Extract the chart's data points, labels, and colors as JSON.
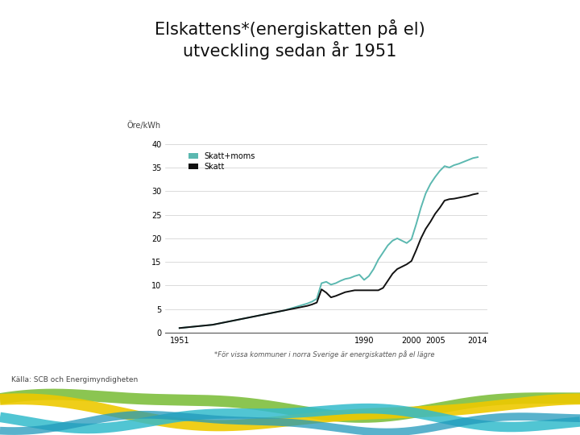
{
  "title_line1": "Elskattens*(energiskatten på el)",
  "title_line2": "utveckling sedan år 1951",
  "ylabel": "Öre/kWh",
  "footnote": "*För vissa kommuner i norra Sverige är energiskatten på el lägre",
  "source": "Källa: SCB och Energimyndigheten",
  "legend_skatt_moms": "Skatt+moms",
  "legend_skatt": "Skatt",
  "color_skatt_moms": "#5BB8B0",
  "color_skatt": "#111111",
  "background_color": "#ffffff",
  "xlim": [
    1948,
    2016
  ],
  "ylim": [
    0,
    41
  ],
  "yticks": [
    0,
    5,
    10,
    15,
    20,
    25,
    30,
    35,
    40
  ],
  "xticks": [
    1951,
    1990,
    2000,
    2005,
    2014
  ],
  "years_skatt": [
    1951,
    1952,
    1953,
    1954,
    1955,
    1956,
    1957,
    1958,
    1959,
    1960,
    1961,
    1962,
    1963,
    1964,
    1965,
    1966,
    1967,
    1968,
    1969,
    1970,
    1971,
    1972,
    1973,
    1974,
    1975,
    1976,
    1977,
    1978,
    1979,
    1980,
    1981,
    1982,
    1983,
    1984,
    1985,
    1986,
    1987,
    1988,
    1989,
    1990,
    1991,
    1992,
    1993,
    1994,
    1995,
    1996,
    1997,
    1998,
    1999,
    2000,
    2001,
    2002,
    2003,
    2004,
    2005,
    2006,
    2007,
    2008,
    2009,
    2010,
    2011,
    2012,
    2013,
    2014
  ],
  "values_skatt": [
    1.0,
    1.1,
    1.2,
    1.3,
    1.4,
    1.5,
    1.6,
    1.7,
    1.9,
    2.1,
    2.3,
    2.5,
    2.7,
    2.9,
    3.1,
    3.3,
    3.5,
    3.7,
    3.9,
    4.1,
    4.3,
    4.5,
    4.7,
    4.9,
    5.1,
    5.3,
    5.5,
    5.7,
    6.0,
    6.4,
    9.2,
    8.5,
    7.5,
    7.8,
    8.2,
    8.6,
    8.8,
    9.0,
    9.0,
    9.0,
    9.0,
    9.0,
    9.0,
    9.5,
    11.0,
    12.5,
    13.5,
    14.0,
    14.5,
    15.2,
    17.5,
    20.0,
    22.0,
    23.5,
    25.2,
    26.5,
    28.0,
    28.3,
    28.4,
    28.6,
    28.8,
    29.0,
    29.3,
    29.5
  ],
  "years_skatt_moms": [
    1951,
    1952,
    1953,
    1954,
    1955,
    1956,
    1957,
    1958,
    1959,
    1960,
    1961,
    1962,
    1963,
    1964,
    1965,
    1966,
    1967,
    1968,
    1969,
    1970,
    1971,
    1972,
    1973,
    1974,
    1975,
    1976,
    1977,
    1978,
    1979,
    1980,
    1981,
    1982,
    1983,
    1984,
    1985,
    1986,
    1987,
    1988,
    1989,
    1990,
    1991,
    1992,
    1993,
    1994,
    1995,
    1996,
    1997,
    1998,
    1999,
    2000,
    2001,
    2002,
    2003,
    2004,
    2005,
    2006,
    2007,
    2008,
    2009,
    2010,
    2011,
    2012,
    2013,
    2014
  ],
  "values_skatt_moms": [
    1.0,
    1.1,
    1.2,
    1.3,
    1.4,
    1.5,
    1.6,
    1.7,
    1.9,
    2.1,
    2.3,
    2.5,
    2.7,
    2.9,
    3.1,
    3.3,
    3.5,
    3.7,
    3.9,
    4.1,
    4.3,
    4.5,
    4.7,
    5.0,
    5.3,
    5.6,
    5.9,
    6.2,
    6.6,
    7.2,
    10.5,
    10.8,
    10.2,
    10.5,
    11.0,
    11.4,
    11.6,
    12.0,
    12.3,
    11.2,
    12.0,
    13.5,
    15.5,
    17.0,
    18.5,
    19.5,
    20.0,
    19.5,
    19.0,
    19.8,
    23.0,
    26.5,
    29.5,
    31.5,
    33.0,
    34.3,
    35.3,
    35.0,
    35.5,
    35.8,
    36.2,
    36.6,
    37.0,
    37.2
  ]
}
